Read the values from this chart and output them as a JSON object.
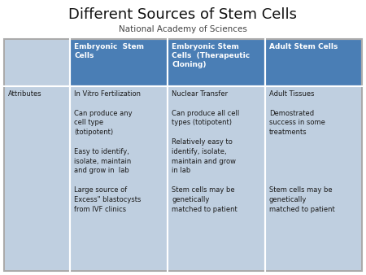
{
  "title": "Different Sources of Stem Cells",
  "subtitle": "National Academy of Sciences",
  "title_fontsize": 13,
  "subtitle_fontsize": 7.5,
  "header_bg_color": "#4a7eb5",
  "header_text_color": "#ffffff",
  "row_bg_color": "#bfcfe0",
  "body_text_color": "#1a1a1a",
  "border_color": "#ffffff",
  "headers": [
    "Embryonic  Stem\nCells",
    "Embryonic Stem\nCells  (Therapeutic\nCloning)",
    "Adult Stem Cells"
  ],
  "col0_content": "Attributes",
  "col1_content": "In Vitro Fertilization\n\nCan produce any\ncell type\n(totipotent)\n\nEasy to identify,\nisolate, maintain\nand grow in  lab\n\nLarge source of\nExcess\" blastocysts\nfrom IVF clinics",
  "col2_content": "Nuclear Transfer\n\nCan produce all cell\ntypes (totipotent)\n\nRelatively easy to\nidentify, isolate,\nmaintain and grow\nin lab\n\nStem cells may be\ngenetically\nmatched to patient",
  "col3_content": "Adult Tissues\n\nDemostrated\nsuccess in some\ntreatments\n\n\n\n\n\nStem cells may be\ngenetically\nmatched to patient",
  "body_fontsize": 6.0,
  "header_fontsize": 6.5,
  "fig_width": 4.5,
  "fig_height": 3.38,
  "fig_dpi": 100
}
